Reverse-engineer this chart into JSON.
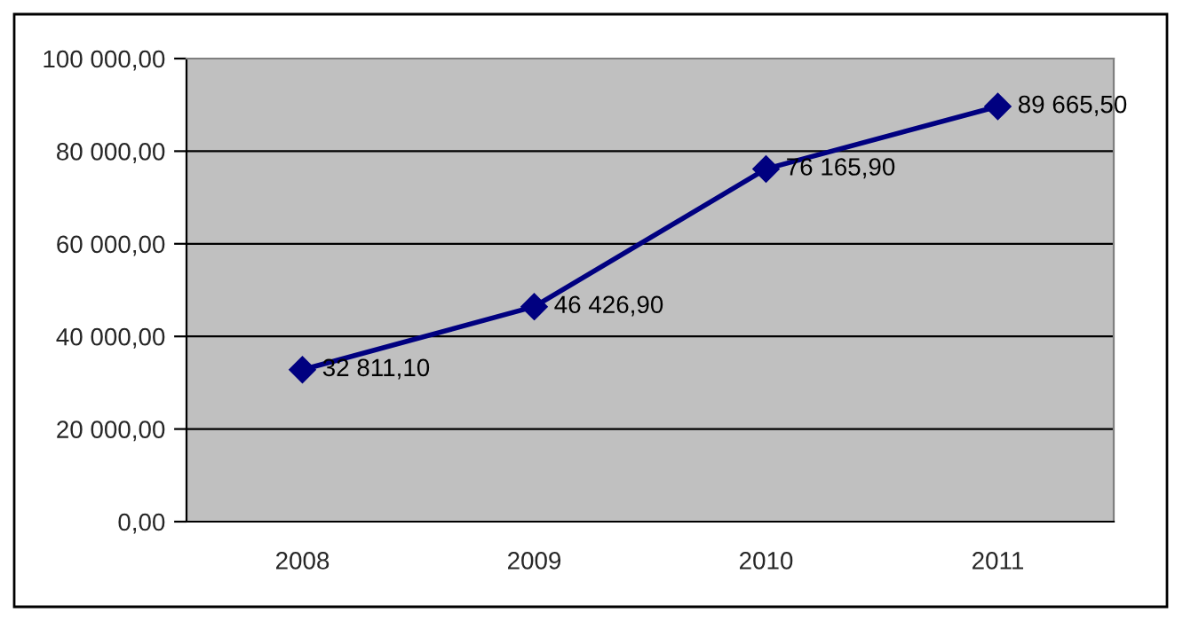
{
  "chart_data": {
    "type": "line",
    "categories": [
      "2008",
      "2009",
      "2010",
      "2011"
    ],
    "series": [
      {
        "color": "#000080",
        "values": [
          32811.1,
          46426.9,
          76165.9,
          89665.5
        ],
        "value_labels": [
          "32 811,10",
          "46 426,90",
          "76 165,90",
          "89 665,50"
        ]
      }
    ],
    "ylim": [
      0,
      100000
    ],
    "yticks": [
      {
        "value": 0,
        "label": "0,00"
      },
      {
        "value": 20000,
        "label": "20 000,00"
      },
      {
        "value": 40000,
        "label": "40 000,00"
      },
      {
        "value": 60000,
        "label": "60 000,00"
      },
      {
        "value": 80000,
        "label": "80 000,00"
      },
      {
        "value": 100000,
        "label": "100 000,00"
      }
    ],
    "grid": "y",
    "marker": "diamond",
    "line_style": "solid"
  }
}
